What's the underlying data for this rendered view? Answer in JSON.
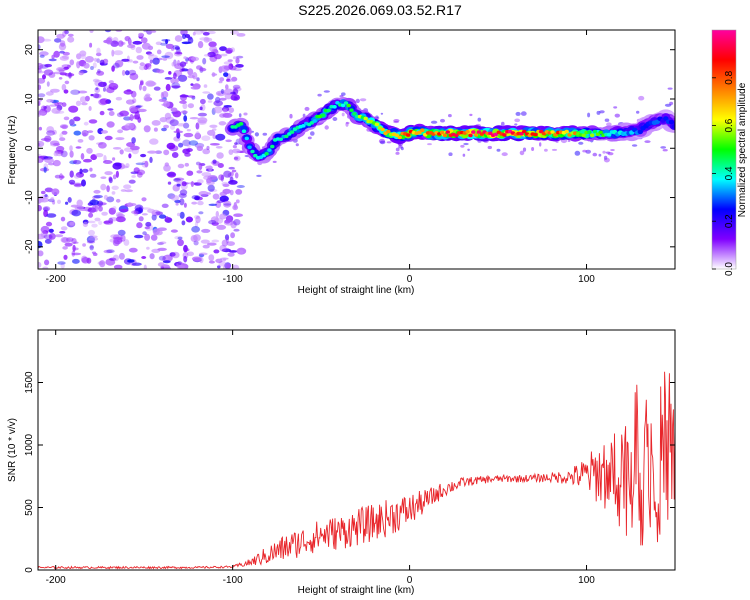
{
  "page_title": "S225.2026.069.03.52.R17",
  "colors": {
    "signal_trace": "#e8252a",
    "noise_dots": "#8a3cf0",
    "axis": "#000000"
  },
  "chart_data": [
    {
      "type": "heatmap",
      "title": "S225.2026.069.03.52.R17",
      "xlabel": "Height of straight line (km)",
      "ylabel": "Frequency (Hz)",
      "xlim": [
        -210,
        150
      ],
      "ylim": [
        -24.5,
        24
      ],
      "x_ticks": [
        -200,
        -100,
        0,
        100
      ],
      "x_tick_labels": [
        "-200",
        "-100",
        "0",
        "100"
      ],
      "y_ticks": [
        -20,
        -10,
        0,
        10,
        20
      ],
      "y_tick_labels": [
        "-20",
        "-10",
        "0",
        "10",
        "20"
      ],
      "noise_region_x": [
        -210,
        -95
      ],
      "ridge": {
        "x": [
          -100,
          -95,
          -90,
          -85,
          -80,
          -75,
          -70,
          -65,
          -60,
          -55,
          -50,
          -45,
          -40,
          -35,
          -30,
          -25,
          -20,
          -15,
          -10,
          -5,
          0,
          5,
          10,
          20,
          30,
          40,
          50,
          60,
          70,
          80,
          90,
          100,
          110,
          120,
          125,
          130,
          135,
          140,
          145,
          150
        ],
        "frequency_hz": [
          4,
          5,
          0,
          -2,
          -1,
          2,
          2.5,
          3.5,
          4.5,
          5.5,
          6.5,
          8,
          9,
          9,
          6.5,
          6,
          5,
          3.5,
          3,
          2.5,
          3,
          3.5,
          3,
          3,
          3,
          3,
          3,
          3,
          3,
          3,
          3,
          3,
          3,
          3,
          3.5,
          3.5,
          5,
          5.5,
          6,
          4.5
        ],
        "normalized_amplitude": [
          0.5,
          0.45,
          0.4,
          0.4,
          0.45,
          0.4,
          0.45,
          0.5,
          0.45,
          0.45,
          0.5,
          0.5,
          0.45,
          0.5,
          0.55,
          0.6,
          0.65,
          0.7,
          0.75,
          0.8,
          0.85,
          0.8,
          0.8,
          0.95,
          0.95,
          0.95,
          0.95,
          0.95,
          0.9,
          0.85,
          0.8,
          0.65,
          0.5,
          0.4,
          0.35,
          0.3,
          0.3,
          0.3,
          0.25,
          0.3
        ]
      },
      "colorbar": {
        "label": "Normalized spectral amplitude",
        "range": [
          0,
          1
        ],
        "ticks": [
          0.0,
          0.2,
          0.4,
          0.6,
          0.8
        ],
        "tick_labels": [
          "0.0",
          "0.2",
          "0.4",
          "0.6",
          "0.8"
        ],
        "gradient_stops": [
          "#ffffff",
          "#8000ff",
          "#0000ff",
          "#00ffff",
          "#00ff00",
          "#ffff00",
          "#ff8000",
          "#ff0000",
          "#ff00a0"
        ]
      }
    },
    {
      "type": "line",
      "xlabel": "Height of straight line (km)",
      "ylabel": "SNR (10 * v/v)",
      "xlim": [
        -210,
        150
      ],
      "ylim": [
        0,
        1920
      ],
      "x_ticks": [
        -200,
        -100,
        0,
        100
      ],
      "x_tick_labels": [
        "-200",
        "-100",
        "0",
        "100"
      ],
      "y_ticks": [
        0,
        500,
        1000,
        1500
      ],
      "y_tick_labels": [
        "0",
        "500",
        "1000",
        "1500"
      ],
      "series": [
        {
          "name": "SNR",
          "x": [
            -210,
            -180,
            -150,
            -120,
            -100,
            -90,
            -80,
            -70,
            -60,
            -50,
            -40,
            -30,
            -20,
            -10,
            0,
            10,
            20,
            30,
            40,
            50,
            60,
            70,
            80,
            90,
            100,
            110,
            120,
            130,
            135,
            140,
            145,
            150
          ],
          "y": [
            20,
            20,
            20,
            20,
            25,
            60,
            120,
            180,
            230,
            280,
            300,
            340,
            380,
            430,
            480,
            560,
            650,
            700,
            720,
            730,
            730,
            735,
            740,
            745,
            760,
            780,
            800,
            820,
            850,
            870,
            880,
            900
          ],
          "spread": [
            8,
            8,
            8,
            8,
            8,
            30,
            80,
            110,
            120,
            130,
            140,
            150,
            150,
            150,
            130,
            90,
            60,
            40,
            30,
            30,
            30,
            30,
            40,
            60,
            150,
            300,
            500,
            650,
            700,
            650,
            550,
            450
          ]
        }
      ]
    }
  ]
}
